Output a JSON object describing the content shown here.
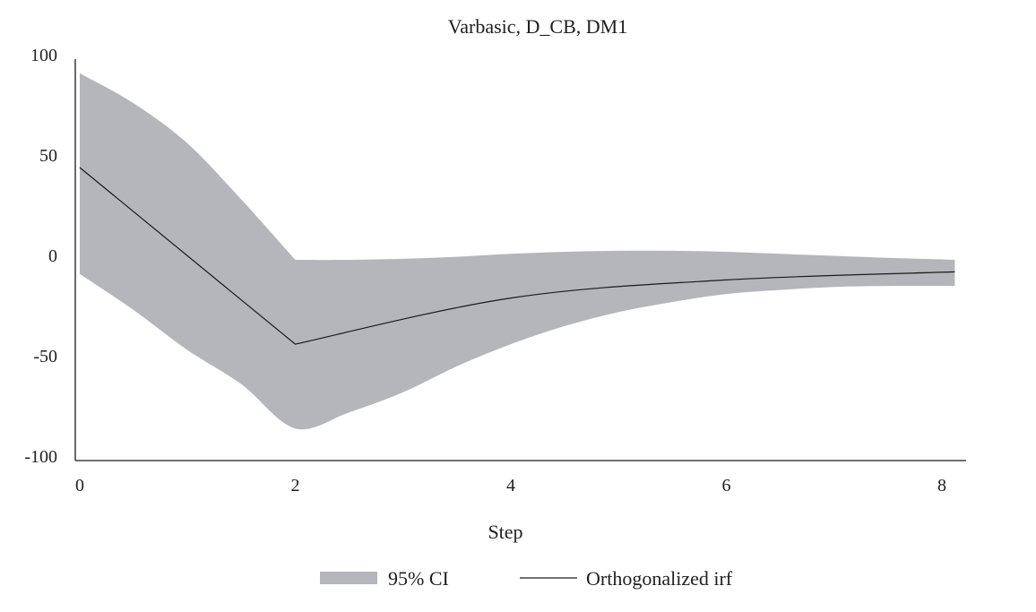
{
  "chart_data": {
    "type": "area",
    "title": "Varbasic, D_CB, DM1",
    "xlabel": "Step",
    "ylabel": "",
    "xlim": [
      0,
      8
    ],
    "ylim": [
      -100,
      100
    ],
    "x_ticks": [
      0,
      2,
      4,
      6,
      8
    ],
    "y_ticks": [
      100,
      50,
      0,
      -50,
      -100
    ],
    "grid": false,
    "legend_position": "bottom",
    "ci_color": "#b5b6ba",
    "irf_color": "#1a1a1a",
    "series": [
      {
        "name": "95% CI",
        "type": "band",
        "x": [
          0,
          0.5,
          1,
          1.5,
          2,
          2.5,
          3,
          3.5,
          4,
          4.5,
          5,
          5.5,
          6,
          6.5,
          7,
          7.5,
          8
        ],
        "lower": [
          -7,
          -25,
          -45,
          -62,
          -84,
          -76,
          -66,
          -53,
          -42,
          -33,
          -26,
          -21,
          -17,
          -15,
          -13.5,
          -13,
          -13
        ],
        "upper": [
          93,
          78,
          58,
          30,
          0,
          0,
          0.5,
          1.5,
          3,
          4,
          4.5,
          4.5,
          4,
          3,
          2,
          1,
          0
        ]
      },
      {
        "name": "Orthogonalized irf",
        "type": "line",
        "x": [
          0,
          2,
          4,
          6,
          8
        ],
        "y": [
          46,
          -42,
          -19,
          -10,
          -6
        ]
      }
    ]
  }
}
